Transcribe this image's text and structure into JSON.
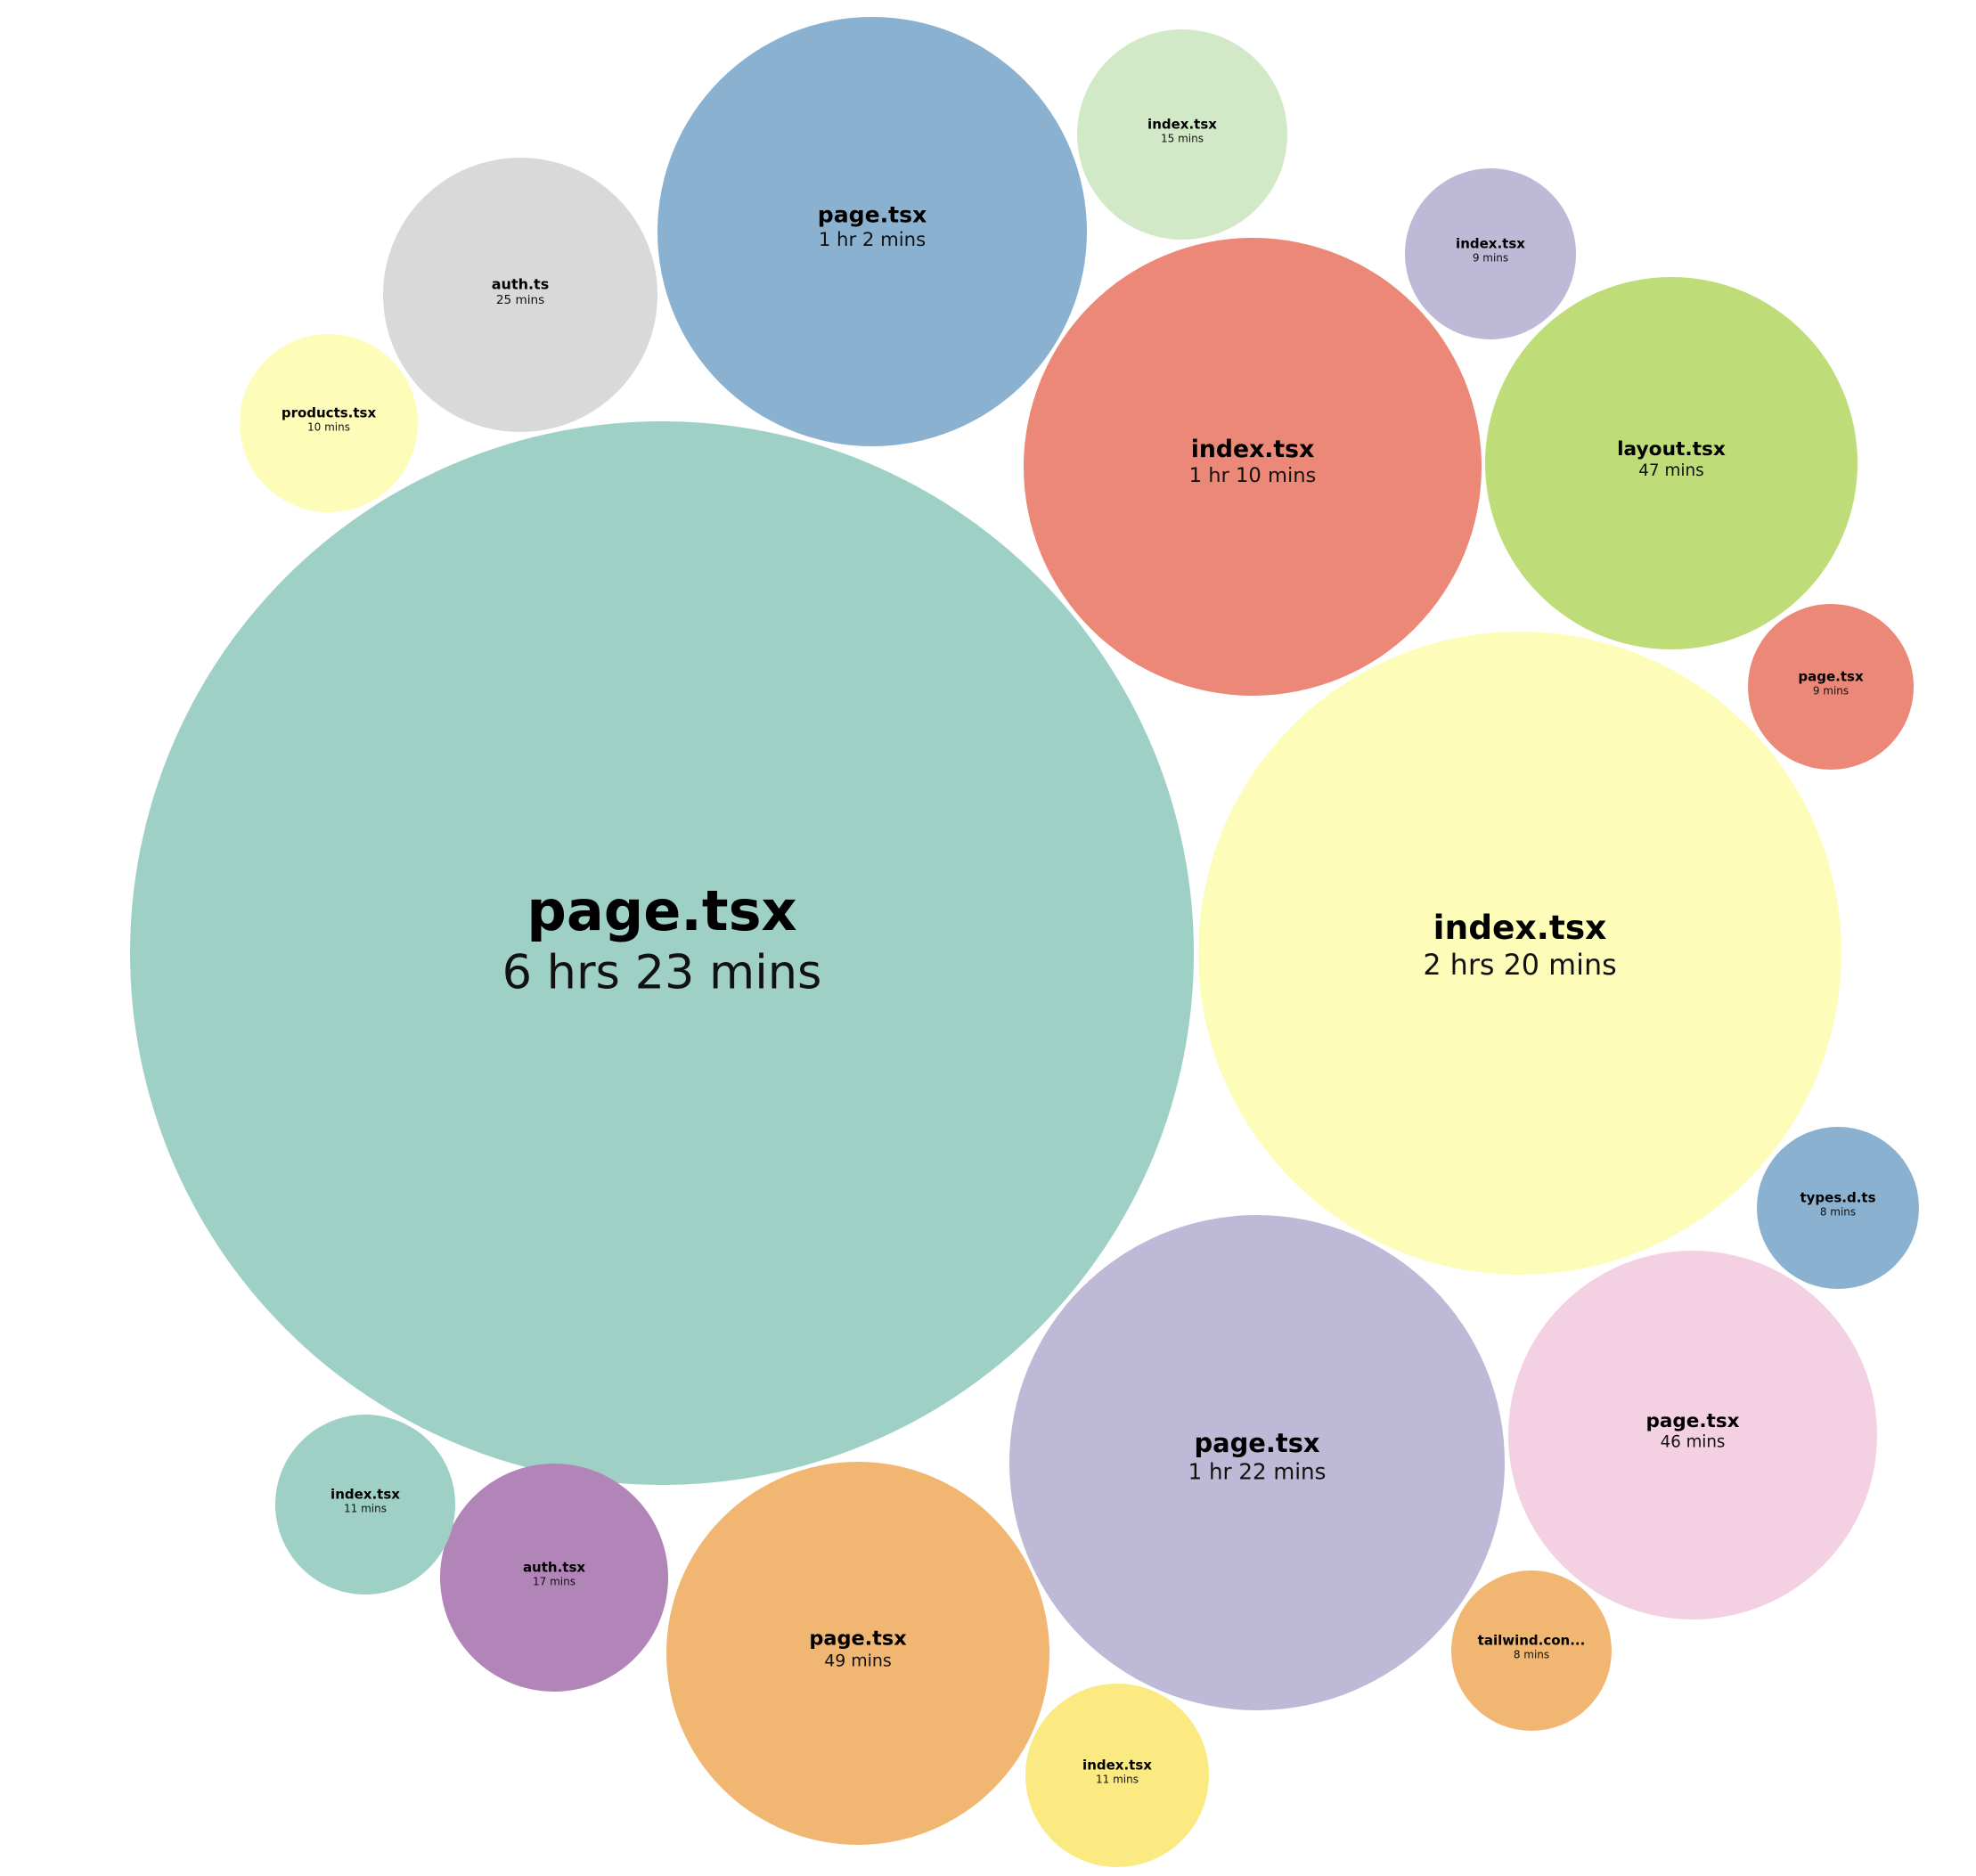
{
  "chart_data": {
    "type": "bubble",
    "title": "",
    "unit": "",
    "bubbles": [
      {
        "label": "page.tsx",
        "value_text": "6 hrs 23 mins",
        "minutes": 383,
        "color": "#9ed0c6"
      },
      {
        "label": "index.tsx",
        "value_text": "2 hrs 20 mins",
        "minutes": 140,
        "color": "#fdfcb8"
      },
      {
        "label": "page.tsx",
        "value_text": "1 hr 22 mins",
        "minutes": 82,
        "color": "#bdb9d6"
      },
      {
        "label": "index.tsx",
        "value_text": "1 hr 10 mins",
        "minutes": 70,
        "color": "#eb8878"
      },
      {
        "label": "page.tsx",
        "value_text": "1 hr 2 mins",
        "minutes": 62,
        "color": "#8bb1d0"
      },
      {
        "label": "page.tsx",
        "value_text": "49 mins",
        "minutes": 49,
        "color": "#f1b672"
      },
      {
        "label": "layout.tsx",
        "value_text": "47 mins",
        "minutes": 47,
        "color": "#bedd78"
      },
      {
        "label": "page.tsx",
        "value_text": "46 mins",
        "minutes": 46,
        "color": "#f4d0e3"
      },
      {
        "label": "auth.ts",
        "value_text": "25 mins",
        "minutes": 25,
        "color": "#d9d9d9"
      },
      {
        "label": "auth.tsx",
        "value_text": "17 mins",
        "minutes": 17,
        "color": "#b285b8"
      },
      {
        "label": "index.tsx",
        "value_text": "15 mins",
        "minutes": 15,
        "color": "#d2e9c8"
      },
      {
        "label": "index.tsx",
        "value_text": "11 mins",
        "minutes": 11,
        "color": "#9ed0c6"
      },
      {
        "label": "index.tsx",
        "value_text": "11 mins",
        "minutes": 11,
        "color": "#faea81"
      },
      {
        "label": "products.tsx",
        "value_text": "10 mins",
        "minutes": 10,
        "color": "#fdfcb8"
      },
      {
        "label": "index.tsx",
        "value_text": "9 mins",
        "minutes": 9,
        "color": "#bdb9d6"
      },
      {
        "label": "page.tsx",
        "value_text": "9 mins",
        "minutes": 9,
        "color": "#eb8878"
      },
      {
        "label": "types.d.ts",
        "value_text": "8 mins",
        "minutes": 8,
        "color": "#8bb1d0"
      },
      {
        "label": "tailwind.con...",
        "value_text": "8 mins",
        "minutes": 8,
        "color": "#f1b672"
      }
    ]
  }
}
